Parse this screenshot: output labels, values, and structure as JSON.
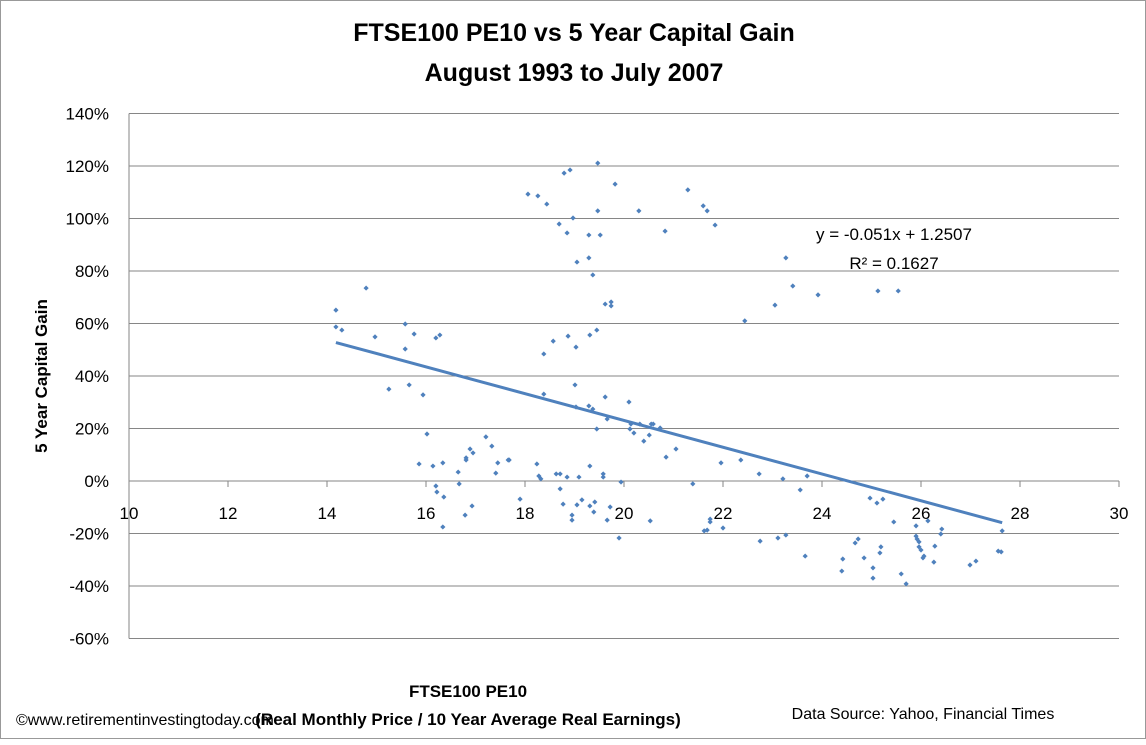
{
  "chart_data": {
    "type": "scatter",
    "title": [
      "FTSE100 PE10 vs 5 Year Capital Gain",
      "August 1993 to July 2007"
    ],
    "xlabel": [
      "FTSE100 PE10",
      "(Real Monthly Price / 10 Year Average Real Earnings)"
    ],
    "ylabel": "5 Year Capital Gain",
    "xlim": [
      10,
      30
    ],
    "ylim": [
      -60,
      140
    ],
    "xticks": [
      10,
      12,
      14,
      16,
      18,
      20,
      22,
      24,
      26,
      28,
      30
    ],
    "yticks": [
      -60,
      -40,
      -20,
      0,
      20,
      40,
      60,
      80,
      100,
      120,
      140
    ],
    "ytick_labels": [
      "-60%",
      "-40%",
      "-20%",
      "0%",
      "20%",
      "40%",
      "60%",
      "80%",
      "100%",
      "120%",
      "140%"
    ],
    "grid": "horizontal",
    "marker_color": "#4F81BD",
    "trendline": {
      "slope": -0.051,
      "intercept": 1.2507,
      "x_range": [
        14.18,
        27.64
      ],
      "equation": "y = -0.051x + 1.2507",
      "r2": "R² = 0.1627",
      "color": "#4F81BD"
    },
    "points": [
      [
        14.79,
        73.5
      ],
      [
        14.18,
        65.1
      ],
      [
        14.18,
        58.7
      ],
      [
        14.3,
        57.5
      ],
      [
        14.97,
        54.9
      ],
      [
        15.58,
        59.8
      ],
      [
        15.76,
        56.0
      ],
      [
        15.58,
        50.3
      ],
      [
        16.2,
        54.5
      ],
      [
        16.28,
        55.6
      ],
      [
        15.25,
        35.0
      ],
      [
        15.66,
        36.6
      ],
      [
        15.94,
        32.8
      ],
      [
        16.02,
        17.9
      ],
      [
        15.86,
        6.5
      ],
      [
        16.14,
        5.7
      ],
      [
        16.34,
        6.9
      ],
      [
        17.21,
        16.8
      ],
      [
        17.33,
        13.3
      ],
      [
        16.89,
        12.2
      ],
      [
        16.95,
        10.7
      ],
      [
        16.81,
        8.8
      ],
      [
        16.81,
        8.0
      ],
      [
        17.45,
        6.9
      ],
      [
        17.41,
        3.0
      ],
      [
        17.68,
        8.0
      ],
      [
        16.65,
        3.4
      ],
      [
        16.67,
        -1.1
      ],
      [
        16.2,
        -1.9
      ],
      [
        16.22,
        -4.2
      ],
      [
        16.36,
        -6.1
      ],
      [
        16.93,
        -9.5
      ],
      [
        16.79,
        -13.0
      ],
      [
        16.34,
        -17.5
      ],
      [
        17.9,
        -6.9
      ],
      [
        19.47,
        121.1
      ],
      [
        18.79,
        117.3
      ],
      [
        18.91,
        118.5
      ],
      [
        19.82,
        113.1
      ],
      [
        18.06,
        109.3
      ],
      [
        18.26,
        108.6
      ],
      [
        18.44,
        105.5
      ],
      [
        21.29,
        110.9
      ],
      [
        19.47,
        102.9
      ],
      [
        20.3,
        102.9
      ],
      [
        18.97,
        100.2
      ],
      [
        18.69,
        97.9
      ],
      [
        18.85,
        94.5
      ],
      [
        19.29,
        93.7
      ],
      [
        19.52,
        93.7
      ],
      [
        20.83,
        95.2
      ],
      [
        19.05,
        83.4
      ],
      [
        19.29,
        85.0
      ],
      [
        19.37,
        78.5
      ],
      [
        19.62,
        67.4
      ],
      [
        19.74,
        68.2
      ],
      [
        19.74,
        66.7
      ],
      [
        19.45,
        57.5
      ],
      [
        19.31,
        55.6
      ],
      [
        18.87,
        55.2
      ],
      [
        18.57,
        53.3
      ],
      [
        19.03,
        51.0
      ],
      [
        18.38,
        48.4
      ],
      [
        19.01,
        36.6
      ],
      [
        18.38,
        33.1
      ],
      [
        19.62,
        32.0
      ],
      [
        20.1,
        30.1
      ],
      [
        19.03,
        28.2
      ],
      [
        19.29,
        28.6
      ],
      [
        19.37,
        27.4
      ],
      [
        19.66,
        23.6
      ],
      [
        19.45,
        19.8
      ],
      [
        20.14,
        21.7
      ],
      [
        20.32,
        21.7
      ],
      [
        20.55,
        21.7
      ],
      [
        20.59,
        21.7
      ],
      [
        20.12,
        19.8
      ],
      [
        20.2,
        18.3
      ],
      [
        20.73,
        20.2
      ],
      [
        20.51,
        17.5
      ],
      [
        20.4,
        15.2
      ],
      [
        21.05,
        12.2
      ],
      [
        20.85,
        9.1
      ],
      [
        17.66,
        8.0
      ],
      [
        18.24,
        6.5
      ],
      [
        19.31,
        5.7
      ],
      [
        18.28,
        1.9
      ],
      [
        18.32,
        0.8
      ],
      [
        18.63,
        2.7
      ],
      [
        18.71,
        2.7
      ],
      [
        18.85,
        1.5
      ],
      [
        19.09,
        1.5
      ],
      [
        19.58,
        2.7
      ],
      [
        19.58,
        1.5
      ],
      [
        19.94,
        -0.4
      ],
      [
        18.71,
        -3.0
      ],
      [
        19.15,
        -7.2
      ],
      [
        19.05,
        -9.1
      ],
      [
        18.77,
        -8.8
      ],
      [
        19.41,
        -8.0
      ],
      [
        19.31,
        -9.5
      ],
      [
        19.39,
        -11.8
      ],
      [
        18.95,
        -13.0
      ],
      [
        18.95,
        -14.9
      ],
      [
        19.72,
        -9.9
      ],
      [
        19.66,
        -14.9
      ],
      [
        20.53,
        -15.2
      ],
      [
        19.9,
        -21.7
      ],
      [
        21.39,
        -1.1
      ],
      [
        21.6,
        104.8
      ],
      [
        21.68,
        102.9
      ],
      [
        21.84,
        97.5
      ],
      [
        23.27,
        85.0
      ],
      [
        23.41,
        74.3
      ],
      [
        23.92,
        70.9
      ],
      [
        25.13,
        72.4
      ],
      [
        25.54,
        72.4
      ],
      [
        23.05,
        67.0
      ],
      [
        22.44,
        61.0
      ],
      [
        21.96,
        6.9
      ],
      [
        22.36,
        8.0
      ],
      [
        22.73,
        2.7
      ],
      [
        23.21,
        0.8
      ],
      [
        23.7,
        1.9
      ],
      [
        23.56,
        -3.4
      ],
      [
        24.97,
        -6.5
      ],
      [
        25.11,
        -8.4
      ],
      [
        25.23,
        -6.9
      ],
      [
        25.45,
        -15.6
      ],
      [
        25.9,
        -17.1
      ],
      [
        26.14,
        -15.2
      ],
      [
        26.42,
        -18.3
      ],
      [
        26.4,
        -20.2
      ],
      [
        27.64,
        -19.0
      ],
      [
        21.62,
        -19.0
      ],
      [
        21.68,
        -18.7
      ],
      [
        21.74,
        -14.5
      ],
      [
        21.74,
        -15.6
      ],
      [
        22.0,
        -17.9
      ],
      [
        22.75,
        -22.9
      ],
      [
        23.11,
        -21.7
      ],
      [
        23.27,
        -20.6
      ],
      [
        23.66,
        -28.6
      ],
      [
        24.42,
        -29.7
      ],
      [
        24.4,
        -34.3
      ],
      [
        24.67,
        -23.6
      ],
      [
        24.73,
        -22.1
      ],
      [
        24.85,
        -29.3
      ],
      [
        25.03,
        -33.1
      ],
      [
        25.03,
        -37.0
      ],
      [
        25.17,
        -27.4
      ],
      [
        25.19,
        -25.1
      ],
      [
        25.6,
        -35.4
      ],
      [
        25.7,
        -39.2
      ],
      [
        25.9,
        -21.0
      ],
      [
        25.92,
        -22.1
      ],
      [
        25.96,
        -23.2
      ],
      [
        25.96,
        -25.1
      ],
      [
        26.0,
        -26.3
      ],
      [
        26.04,
        -29.3
      ],
      [
        26.06,
        -28.6
      ],
      [
        26.28,
        -24.8
      ],
      [
        26.26,
        -30.9
      ],
      [
        26.99,
        -32.0
      ],
      [
        27.11,
        -30.5
      ],
      [
        27.56,
        -26.7
      ],
      [
        27.62,
        -27.0
      ]
    ]
  },
  "footer": {
    "copyright": "©www.retirementinvestingtoday.com",
    "source": "Data Source: Yahoo, Financial Times"
  }
}
